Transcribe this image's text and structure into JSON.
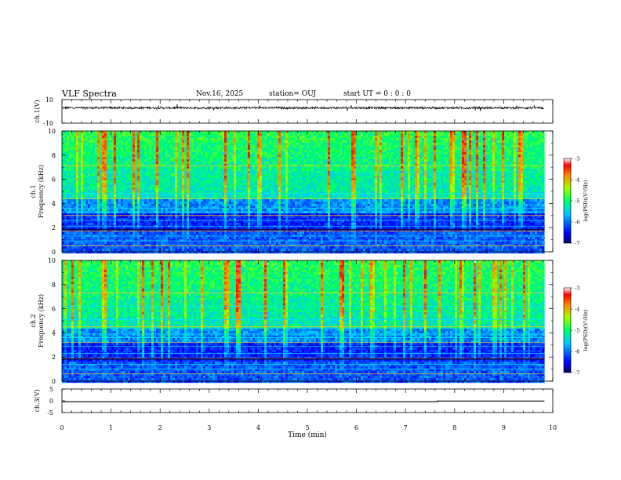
{
  "header": {
    "title": "VLF Spectra",
    "date": "Nov.16, 2025",
    "station": "station= OUJ",
    "start": "start  UT =  0 : 0  : 0"
  },
  "chart_data": [
    {
      "type": "line",
      "name": "ch1-waveform",
      "ylabel": "ch.1(V)",
      "ylim": [
        -10,
        10
      ],
      "yticks": [
        "10",
        "-10"
      ],
      "baseline": 3.0,
      "xlim": [
        0,
        10
      ],
      "data_end": 9.83
    },
    {
      "type": "heatmap",
      "name": "ch1-spectrogram",
      "ylabel_top": "ch.1",
      "ylabel": "Frequency (kHz)",
      "ylim": [
        0,
        10
      ],
      "yticks": [
        "0",
        "2",
        "4",
        "6",
        "8",
        "10"
      ],
      "xlim": [
        0,
        10
      ],
      "data_end": 9.83,
      "colorbar": {
        "label": "log(PSD)(V²/Hz)",
        "range": [
          -7,
          -3
        ],
        "ticks": [
          "-3",
          "-4",
          "-5",
          "-6",
          "-7"
        ]
      }
    },
    {
      "type": "heatmap",
      "name": "ch2-spectrogram",
      "ylabel_top": "ch.2",
      "ylabel": "Frequency (kHz)",
      "ylim": [
        0,
        10
      ],
      "yticks": [
        "0",
        "2",
        "4",
        "6",
        "8",
        "10"
      ],
      "xlim": [
        0,
        10
      ],
      "data_end": 9.83,
      "colorbar": {
        "label": "log(PSD)(V²/Hz)",
        "range": [
          -7,
          -3
        ],
        "ticks": [
          "-3",
          "-4",
          "-5",
          "-6",
          "-7"
        ]
      }
    },
    {
      "type": "line",
      "name": "ch3-waveform",
      "ylabel": "ch.3(V)",
      "ylim": [
        -5,
        5
      ],
      "yticks": [
        "5",
        "0",
        "-5"
      ],
      "x": [
        0,
        7.65,
        7.65,
        9.83
      ],
      "y": [
        -0.4,
        -0.4,
        -0.1,
        -0.1
      ],
      "xlim": [
        0,
        10
      ]
    }
  ],
  "xaxis": {
    "label": "Time (min)",
    "ticks": [
      "0",
      "1",
      "2",
      "3",
      "4",
      "5",
      "6",
      "7",
      "8",
      "9",
      "10"
    ]
  },
  "colors": {
    "bg": "#ffffff",
    "ink": "#000000"
  }
}
